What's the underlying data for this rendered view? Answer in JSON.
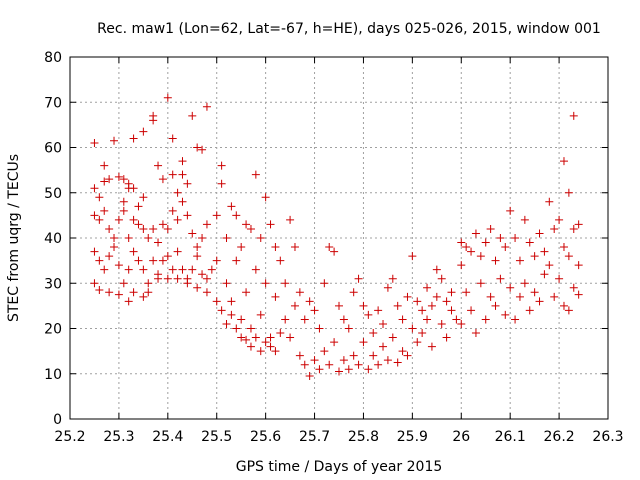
{
  "chart_data": {
    "type": "scatter",
    "title": "Rec. maw1 (Lon=62, Lat=-67, h=HE), days 025-026, 2015, window 001",
    "xlabel": "GPS time / Days of year 2015",
    "ylabel": "STEC from uqrg / TECUs",
    "xlim": [
      25.2,
      26.3
    ],
    "ylim": [
      0,
      80
    ],
    "xticks": [
      25.2,
      25.3,
      25.4,
      25.5,
      25.6,
      25.7,
      25.8,
      25.9,
      26.0,
      26.1,
      26.2,
      26.3
    ],
    "xtick_labels": [
      "25.2",
      "25.3",
      "25.4",
      "25.5",
      "25.6",
      "25.7",
      "25.8",
      "25.9",
      "26",
      "26.1",
      "26.2",
      "26.3"
    ],
    "yticks": [
      0,
      10,
      20,
      30,
      40,
      50,
      60,
      70,
      80
    ],
    "ytick_labels": [
      "0",
      "10",
      "20",
      "30",
      "40",
      "50",
      "60",
      "70",
      "80"
    ],
    "grid": true,
    "marker": "plus",
    "color": "#cc0000",
    "series": [
      {
        "name": "",
        "points": [
          [
            25.25,
            61
          ],
          [
            25.27,
            56
          ],
          [
            25.29,
            61.5
          ],
          [
            25.31,
            53
          ],
          [
            25.32,
            51
          ],
          [
            25.33,
            62
          ],
          [
            25.35,
            63.5
          ],
          [
            25.37,
            66
          ],
          [
            25.37,
            67
          ],
          [
            25.4,
            71
          ],
          [
            25.41,
            62
          ],
          [
            25.43,
            57
          ],
          [
            25.45,
            67
          ],
          [
            25.46,
            60
          ],
          [
            25.47,
            59.5
          ],
          [
            25.48,
            69
          ],
          [
            25.25,
            51
          ],
          [
            25.26,
            49
          ],
          [
            25.27,
            52.5
          ],
          [
            25.28,
            53
          ],
          [
            25.3,
            53.5
          ],
          [
            25.31,
            48
          ],
          [
            25.32,
            52
          ],
          [
            25.33,
            51
          ],
          [
            25.34,
            47
          ],
          [
            25.35,
            49
          ],
          [
            25.38,
            56
          ],
          [
            25.39,
            53
          ],
          [
            25.41,
            54
          ],
          [
            25.42,
            50
          ],
          [
            25.43,
            54
          ],
          [
            25.44,
            52
          ],
          [
            25.25,
            45
          ],
          [
            25.26,
            44
          ],
          [
            25.27,
            46
          ],
          [
            25.28,
            42
          ],
          [
            25.29,
            40
          ],
          [
            25.3,
            44
          ],
          [
            25.31,
            46
          ],
          [
            25.32,
            40
          ],
          [
            25.33,
            44
          ],
          [
            25.34,
            43
          ],
          [
            25.35,
            42
          ],
          [
            25.36,
            40
          ],
          [
            25.37,
            42
          ],
          [
            25.38,
            39
          ],
          [
            25.39,
            43
          ],
          [
            25.4,
            42
          ],
          [
            25.41,
            46
          ],
          [
            25.42,
            44
          ],
          [
            25.43,
            48
          ],
          [
            25.44,
            45
          ],
          [
            25.45,
            41
          ],
          [
            25.46,
            38
          ],
          [
            25.47,
            40
          ],
          [
            25.48,
            43
          ],
          [
            25.25,
            37
          ],
          [
            25.26,
            35
          ],
          [
            25.27,
            33
          ],
          [
            25.28,
            36
          ],
          [
            25.29,
            38
          ],
          [
            25.3,
            34
          ],
          [
            25.31,
            30
          ],
          [
            25.32,
            33
          ],
          [
            25.33,
            37
          ],
          [
            25.34,
            35
          ],
          [
            25.35,
            33
          ],
          [
            25.36,
            30
          ],
          [
            25.37,
            35
          ],
          [
            25.38,
            32
          ],
          [
            25.39,
            35
          ],
          [
            25.4,
            36
          ],
          [
            25.41,
            33
          ],
          [
            25.42,
            37
          ],
          [
            25.43,
            33
          ],
          [
            25.44,
            31
          ],
          [
            25.45,
            33
          ],
          [
            25.46,
            36
          ],
          [
            25.47,
            32
          ],
          [
            25.48,
            31
          ],
          [
            25.49,
            33
          ],
          [
            25.25,
            30
          ],
          [
            25.26,
            28.5
          ],
          [
            25.28,
            28
          ],
          [
            25.3,
            27.5
          ],
          [
            25.32,
            26
          ],
          [
            25.33,
            28
          ],
          [
            25.35,
            27
          ],
          [
            25.36,
            28
          ],
          [
            25.38,
            31
          ],
          [
            25.4,
            31
          ],
          [
            25.42,
            31
          ],
          [
            25.44,
            30
          ],
          [
            25.46,
            29
          ],
          [
            25.48,
            28
          ],
          [
            25.5,
            45
          ],
          [
            25.5,
            35
          ],
          [
            25.51,
            56
          ],
          [
            25.51,
            52
          ],
          [
            25.52,
            40
          ],
          [
            25.52,
            30
          ],
          [
            25.53,
            47
          ],
          [
            25.53,
            26
          ],
          [
            25.54,
            45
          ],
          [
            25.54,
            35
          ],
          [
            25.55,
            38
          ],
          [
            25.55,
            22
          ],
          [
            25.56,
            43
          ],
          [
            25.56,
            28
          ],
          [
            25.57,
            42
          ],
          [
            25.57,
            20
          ],
          [
            25.58,
            54
          ],
          [
            25.58,
            33
          ],
          [
            25.59,
            40
          ],
          [
            25.59,
            23
          ],
          [
            25.6,
            49
          ],
          [
            25.6,
            30
          ],
          [
            25.61,
            43
          ],
          [
            25.61,
            18
          ],
          [
            25.62,
            38
          ],
          [
            25.62,
            27
          ],
          [
            25.5,
            26
          ],
          [
            25.51,
            24
          ],
          [
            25.52,
            21
          ],
          [
            25.53,
            23
          ],
          [
            25.54,
            20
          ],
          [
            25.55,
            18
          ],
          [
            25.56,
            17.5
          ],
          [
            25.57,
            16
          ],
          [
            25.58,
            18
          ],
          [
            25.59,
            15
          ],
          [
            25.6,
            17
          ],
          [
            25.61,
            16
          ],
          [
            25.62,
            15
          ],
          [
            25.63,
            19
          ],
          [
            25.64,
            22
          ],
          [
            25.65,
            18
          ],
          [
            25.63,
            35
          ],
          [
            25.64,
            30
          ],
          [
            25.65,
            44
          ],
          [
            25.66,
            38
          ],
          [
            25.66,
            25
          ],
          [
            25.67,
            28
          ],
          [
            25.67,
            14
          ],
          [
            25.68,
            22
          ],
          [
            25.68,
            12
          ],
          [
            25.69,
            26
          ],
          [
            25.69,
            9.5
          ],
          [
            25.7,
            24
          ],
          [
            25.7,
            13
          ],
          [
            25.71,
            20
          ],
          [
            25.71,
            11
          ],
          [
            25.72,
            30
          ],
          [
            25.72,
            15
          ],
          [
            25.73,
            38
          ],
          [
            25.73,
            12
          ],
          [
            25.74,
            37
          ],
          [
            25.74,
            17
          ],
          [
            25.75,
            25
          ],
          [
            25.75,
            10.5
          ],
          [
            25.76,
            22
          ],
          [
            25.76,
            13
          ],
          [
            25.77,
            20
          ],
          [
            25.77,
            11
          ],
          [
            25.78,
            28
          ],
          [
            25.78,
            14
          ],
          [
            25.79,
            31
          ],
          [
            25.79,
            12
          ],
          [
            25.8,
            25
          ],
          [
            25.8,
            17
          ],
          [
            25.81,
            23
          ],
          [
            25.81,
            11
          ],
          [
            25.82,
            19
          ],
          [
            25.82,
            14
          ],
          [
            25.83,
            24
          ],
          [
            25.83,
            12
          ],
          [
            25.84,
            21
          ],
          [
            25.84,
            16
          ],
          [
            25.85,
            29
          ],
          [
            25.85,
            13
          ],
          [
            25.86,
            31
          ],
          [
            25.86,
            18
          ],
          [
            25.87,
            25
          ],
          [
            25.87,
            12.5
          ],
          [
            25.88,
            22
          ],
          [
            25.88,
            15
          ],
          [
            25.89,
            27
          ],
          [
            25.89,
            14
          ],
          [
            25.9,
            36
          ],
          [
            25.9,
            20
          ],
          [
            25.91,
            26
          ],
          [
            25.91,
            17
          ],
          [
            25.92,
            24
          ],
          [
            25.92,
            19
          ],
          [
            25.93,
            29
          ],
          [
            25.93,
            22
          ],
          [
            25.94,
            25
          ],
          [
            25.94,
            16
          ],
          [
            25.95,
            33
          ],
          [
            25.95,
            27
          ],
          [
            25.96,
            31
          ],
          [
            25.96,
            21
          ],
          [
            25.97,
            26
          ],
          [
            25.97,
            18
          ],
          [
            25.98,
            28
          ],
          [
            25.98,
            24
          ],
          [
            25.99,
            22
          ],
          [
            26.0,
            39
          ],
          [
            26.0,
            34
          ],
          [
            26.0,
            21
          ],
          [
            26.01,
            38
          ],
          [
            26.01,
            28
          ],
          [
            26.02,
            37
          ],
          [
            26.02,
            24
          ],
          [
            26.03,
            41
          ],
          [
            26.03,
            19
          ],
          [
            26.04,
            36
          ],
          [
            26.04,
            30
          ],
          [
            26.05,
            39
          ],
          [
            26.05,
            22
          ],
          [
            26.06,
            42
          ],
          [
            26.06,
            27
          ],
          [
            26.07,
            35
          ],
          [
            26.07,
            25
          ],
          [
            26.08,
            40
          ],
          [
            26.08,
            31
          ],
          [
            26.09,
            38
          ],
          [
            26.09,
            23
          ],
          [
            26.1,
            46
          ],
          [
            26.1,
            29
          ],
          [
            26.11,
            40
          ],
          [
            26.11,
            22
          ],
          [
            26.12,
            35
          ],
          [
            26.12,
            27
          ],
          [
            26.13,
            44
          ],
          [
            26.13,
            30
          ],
          [
            26.14,
            39
          ],
          [
            26.14,
            24
          ],
          [
            26.15,
            36
          ],
          [
            26.15,
            28
          ],
          [
            26.16,
            41
          ],
          [
            26.16,
            26
          ],
          [
            26.17,
            37
          ],
          [
            26.17,
            32
          ],
          [
            26.18,
            48
          ],
          [
            26.18,
            34
          ],
          [
            26.19,
            42
          ],
          [
            26.19,
            27
          ],
          [
            26.2,
            44
          ],
          [
            26.2,
            31
          ],
          [
            26.21,
            57
          ],
          [
            26.21,
            38
          ],
          [
            26.21,
            25
          ],
          [
            26.22,
            50
          ],
          [
            26.22,
            36
          ],
          [
            26.22,
            24
          ],
          [
            26.23,
            67
          ],
          [
            26.23,
            42
          ],
          [
            26.23,
            29
          ],
          [
            26.24,
            43
          ],
          [
            26.24,
            34
          ],
          [
            26.24,
            27.5
          ]
        ]
      }
    ]
  }
}
